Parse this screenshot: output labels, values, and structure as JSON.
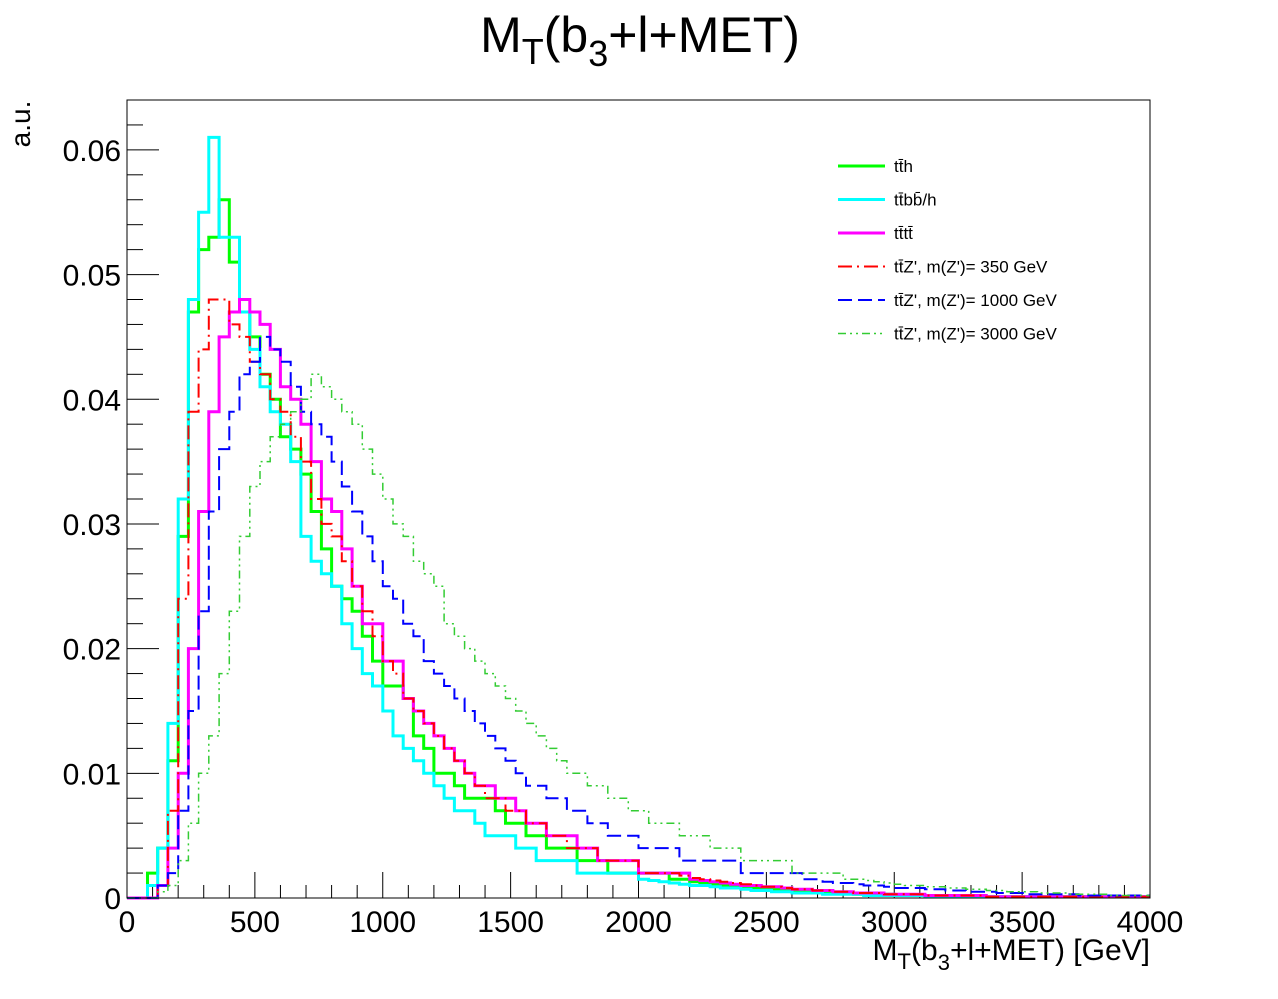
{
  "chart_data": {
    "type": "line",
    "title": {
      "main": "M",
      "sub1": "T",
      "mid": "(b",
      "sub2": "3",
      "tail": "+l+MET)"
    },
    "xlabel": {
      "main": "M",
      "sub1": "T",
      "mid": "(b",
      "sub2": "3",
      "tail": "+l+MET) [GeV]"
    },
    "ylabel": "a.u.",
    "xlim": [
      0,
      4000
    ],
    "ylim": [
      0,
      0.064
    ],
    "x_ticks": [
      0,
      500,
      1000,
      1500,
      2000,
      2500,
      3000,
      3500,
      4000
    ],
    "x_tick_labels": [
      "0",
      "500",
      "1000",
      "1500",
      "2000",
      "2500",
      "3000",
      "3500",
      "4000"
    ],
    "y_ticks": [
      0,
      0.01,
      0.02,
      0.03,
      0.04,
      0.05,
      0.06
    ],
    "y_tick_labels": [
      "0",
      "0.01",
      "0.02",
      "0.03",
      "0.04",
      "0.05",
      "0.06"
    ],
    "grid": false,
    "legend_position": "top-right",
    "bin_width": 40,
    "series": [
      {
        "name": "tt̄h",
        "color": "#00ff00",
        "style": "solid",
        "bin_start": 0,
        "values": [
          0,
          0,
          0.002,
          0.004,
          0.011,
          0.029,
          0.047,
          0.052,
          0.053,
          0.056,
          0.051,
          0.047,
          0.045,
          0.042,
          0.04,
          0.037,
          0.036,
          0.034,
          0.031,
          0.028,
          0.025,
          0.024,
          0.023,
          0.021,
          0.019,
          0.017,
          0.017,
          0.016,
          0.013,
          0.012,
          0.01,
          0.01,
          0.009,
          0.008,
          0.008,
          0.008,
          0.007,
          0.006,
          0.006,
          0.005,
          0.005,
          0.004,
          0.004,
          0.004,
          0.003,
          0.003,
          0.003,
          0.002,
          0.002,
          0.002,
          0.002,
          0.002,
          0.002,
          0.0015,
          0.0015,
          0.0013,
          0.0012,
          0.0011,
          0.001,
          0.001,
          0.0009,
          0.0008,
          0.0008,
          0.0007,
          0.0006,
          0.0006,
          0.0005,
          0.0005,
          0.0004,
          0.0004,
          0.0004,
          0.0003,
          0.0003,
          0.0003,
          0.0003,
          0.0002,
          0.0002,
          0.0002,
          0.0002,
          0.0002,
          0.0002,
          0.0002,
          0.0001,
          0.0001,
          0.0001,
          0.0001,
          0.0001,
          0.0001,
          0.0001,
          0.0001,
          0.0001,
          0.0001,
          0.0001,
          0.0001,
          0.0001,
          0.0001,
          0.0001,
          0.0001,
          0.0001,
          0.0001
        ]
      },
      {
        "name": "tt̄bb̄/h",
        "color": "#00ffff",
        "style": "solid",
        "bin_start": 0,
        "values": [
          0,
          0,
          0.001,
          0.004,
          0.014,
          0.032,
          0.048,
          0.055,
          0.061,
          0.053,
          0.053,
          0.047,
          0.044,
          0.041,
          0.039,
          0.038,
          0.035,
          0.029,
          0.027,
          0.026,
          0.025,
          0.022,
          0.02,
          0.018,
          0.017,
          0.015,
          0.013,
          0.012,
          0.011,
          0.01,
          0.009,
          0.008,
          0.007,
          0.007,
          0.006,
          0.005,
          0.005,
          0.005,
          0.004,
          0.004,
          0.003,
          0.003,
          0.003,
          0.003,
          0.002,
          0.002,
          0.002,
          0.002,
          0.002,
          0.002,
          0.0015,
          0.0014,
          0.0013,
          0.0012,
          0.0011,
          0.001,
          0.001,
          0.0009,
          0.0008,
          0.0008,
          0.0007,
          0.0006,
          0.0006,
          0.0005,
          0.0005,
          0.0004,
          0.0004,
          0.0004,
          0.0003,
          0.0003,
          0.0003,
          0.0003,
          0.0002,
          0.0002,
          0.0002,
          0.0002,
          0.0002,
          0.0002,
          0.0001,
          0.0001,
          0.0001,
          0.0001,
          0.0001,
          0.0001,
          0.0001,
          0.0001,
          0.0001,
          0.0001,
          0.0001,
          0.0001,
          0.0001,
          0.0001,
          0.0001,
          0.0001,
          0.0001,
          0.0001,
          0.0001,
          0.0001,
          0.0001,
          0.0001
        ]
      },
      {
        "name": "tt̄tt̄",
        "color": "#ff00ff",
        "style": "solid",
        "bin_start": 0,
        "values": [
          0,
          0,
          0,
          0.001,
          0.004,
          0.01,
          0.02,
          0.031,
          0.039,
          0.045,
          0.047,
          0.048,
          0.047,
          0.046,
          0.044,
          0.041,
          0.04,
          0.038,
          0.035,
          0.032,
          0.031,
          0.028,
          0.025,
          0.022,
          0.022,
          0.019,
          0.019,
          0.016,
          0.015,
          0.014,
          0.013,
          0.012,
          0.011,
          0.01,
          0.009,
          0.009,
          0.008,
          0.008,
          0.007,
          0.006,
          0.006,
          0.005,
          0.005,
          0.005,
          0.004,
          0.004,
          0.003,
          0.003,
          0.003,
          0.003,
          0.002,
          0.002,
          0.002,
          0.002,
          0.002,
          0.0015,
          0.0014,
          0.0013,
          0.0012,
          0.0011,
          0.001,
          0.001,
          0.0009,
          0.0009,
          0.0008,
          0.0007,
          0.0007,
          0.0006,
          0.0006,
          0.0005,
          0.0005,
          0.0004,
          0.0004,
          0.0004,
          0.0003,
          0.0003,
          0.0003,
          0.0003,
          0.0002,
          0.0002,
          0.0002,
          0.0002,
          0.0002,
          0.0002,
          0.0001,
          0.0001,
          0.0001,
          0.0001,
          0.0001,
          0.0001,
          0.0001,
          0.0001,
          0.0001,
          0.0001,
          0.0001,
          0.0001,
          0.0001,
          0.0001,
          0.0001,
          0.0001
        ]
      },
      {
        "name": "tt̄Z', m(Z')= 350 GeV",
        "color": "#ff0000",
        "style": "dashdot",
        "bin_start": 0,
        "values": [
          0,
          0,
          0,
          0.001,
          0.007,
          0.024,
          0.039,
          0.044,
          0.048,
          0.048,
          0.046,
          0.045,
          0.043,
          0.042,
          0.04,
          0.039,
          0.037,
          0.035,
          0.032,
          0.03,
          0.029,
          0.027,
          0.025,
          0.023,
          0.021,
          0.019,
          0.018,
          0.016,
          0.015,
          0.014,
          0.013,
          0.012,
          0.011,
          0.01,
          0.009,
          0.008,
          0.008,
          0.007,
          0.007,
          0.006,
          0.006,
          0.005,
          0.005,
          0.004,
          0.004,
          0.004,
          0.003,
          0.003,
          0.003,
          0.003,
          0.002,
          0.002,
          0.002,
          0.002,
          0.0018,
          0.0016,
          0.0015,
          0.0014,
          0.0013,
          0.0012,
          0.0011,
          0.001,
          0.0009,
          0.0009,
          0.0008,
          0.0007,
          0.0007,
          0.0006,
          0.0006,
          0.0005,
          0.0005,
          0.0004,
          0.0004,
          0.0004,
          0.0003,
          0.0003,
          0.0003,
          0.0003,
          0.0002,
          0.0002,
          0.0002,
          0.0002,
          0.0002,
          0.0002,
          0.0001,
          0.0001,
          0.0001,
          0.0001,
          0.0001,
          0.0001,
          0.0001,
          0.0001,
          0.0001,
          0.0001,
          0.0001,
          0.0001,
          0.0001,
          0.0001,
          0.0001,
          0.0001
        ]
      },
      {
        "name": "tt̄Z', m(Z')= 1000 GeV",
        "color": "#0000ff",
        "style": "dashed",
        "bin_start": 0,
        "values": [
          0,
          0,
          0,
          0.001,
          0.002,
          0.007,
          0.015,
          0.023,
          0.031,
          0.036,
          0.039,
          0.042,
          0.043,
          0.045,
          0.044,
          0.043,
          0.041,
          0.039,
          0.038,
          0.037,
          0.035,
          0.033,
          0.031,
          0.029,
          0.027,
          0.025,
          0.024,
          0.022,
          0.021,
          0.019,
          0.018,
          0.017,
          0.016,
          0.015,
          0.014,
          0.013,
          0.012,
          0.011,
          0.01,
          0.009,
          0.009,
          0.008,
          0.008,
          0.007,
          0.007,
          0.006,
          0.006,
          0.005,
          0.005,
          0.005,
          0.004,
          0.004,
          0.004,
          0.004,
          0.003,
          0.003,
          0.003,
          0.003,
          0.003,
          0.003,
          0.002,
          0.002,
          0.002,
          0.002,
          0.002,
          0.002,
          0.0015,
          0.0015,
          0.0013,
          0.0012,
          0.0012,
          0.0011,
          0.001,
          0.001,
          0.0009,
          0.0008,
          0.0008,
          0.0008,
          0.0007,
          0.0007,
          0.0006,
          0.0006,
          0.0005,
          0.0005,
          0.0005,
          0.0004,
          0.0004,
          0.0004,
          0.0003,
          0.0003,
          0.0003,
          0.0003,
          0.0003,
          0.0002,
          0.0002,
          0.0002,
          0.0002,
          0.0002,
          0.0002,
          0.0002
        ]
      },
      {
        "name": "tt̄Z', m(Z')= 3000 GeV",
        "color": "#33cc33",
        "style": "dashdotdot",
        "bin_start": 0,
        "values": [
          0,
          0,
          0,
          0.0005,
          0.001,
          0.003,
          0.006,
          0.01,
          0.013,
          0.018,
          0.023,
          0.029,
          0.033,
          0.035,
          0.037,
          0.038,
          0.039,
          0.04,
          0.042,
          0.041,
          0.04,
          0.039,
          0.038,
          0.036,
          0.034,
          0.032,
          0.03,
          0.029,
          0.027,
          0.026,
          0.025,
          0.022,
          0.021,
          0.02,
          0.019,
          0.018,
          0.017,
          0.016,
          0.015,
          0.014,
          0.013,
          0.012,
          0.011,
          0.01,
          0.01,
          0.009,
          0.009,
          0.008,
          0.008,
          0.007,
          0.007,
          0.006,
          0.006,
          0.006,
          0.005,
          0.005,
          0.005,
          0.004,
          0.004,
          0.004,
          0.003,
          0.003,
          0.003,
          0.003,
          0.003,
          0.002,
          0.002,
          0.002,
          0.002,
          0.002,
          0.0015,
          0.0015,
          0.0014,
          0.0013,
          0.0012,
          0.0011,
          0.001,
          0.001,
          0.0009,
          0.0009,
          0.0008,
          0.0008,
          0.0007,
          0.0007,
          0.0006,
          0.0006,
          0.0005,
          0.0005,
          0.0005,
          0.0004,
          0.0004,
          0.0004,
          0.0003,
          0.0003,
          0.0003,
          0.0003,
          0.0002,
          0.0002,
          0.0002,
          0.0002
        ]
      }
    ]
  }
}
